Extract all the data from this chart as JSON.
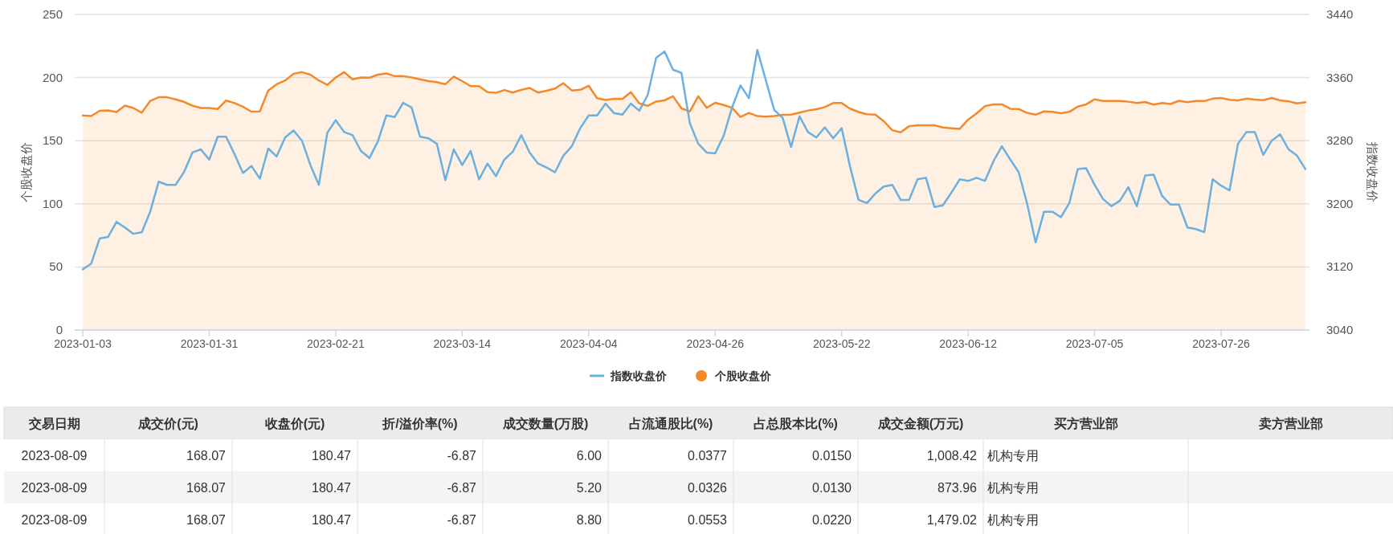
{
  "chart_data": [
    {
      "type": "line",
      "ylabel": "个股收盘价",
      "y2label": "指数收盘价",
      "ylim": [
        0,
        250
      ],
      "yticks": [
        0,
        50,
        100,
        150,
        200,
        250
      ],
      "y2lim": [
        3040,
        3440
      ],
      "y2ticks": [
        3040,
        3120,
        3200,
        3280,
        3360,
        3440
      ],
      "grid": "y",
      "legend": "bottom",
      "categories": [
        "2023-01-03",
        null,
        null,
        null,
        null,
        null,
        null,
        null,
        null,
        null,
        null,
        null,
        null,
        null,
        null,
        "2023-01-31",
        null,
        null,
        null,
        null,
        null,
        null,
        null,
        null,
        null,
        null,
        null,
        null,
        null,
        null,
        "2023-02-21",
        null,
        null,
        null,
        null,
        null,
        null,
        null,
        null,
        null,
        null,
        null,
        null,
        null,
        null,
        "2023-03-14",
        null,
        null,
        null,
        null,
        null,
        null,
        null,
        null,
        null,
        null,
        null,
        null,
        null,
        null,
        "2023-04-04",
        null,
        null,
        null,
        null,
        null,
        null,
        null,
        null,
        null,
        null,
        null,
        null,
        null,
        null,
        "2023-04-26",
        null,
        null,
        null,
        null,
        null,
        null,
        null,
        null,
        null,
        null,
        null,
        null,
        null,
        null,
        "2023-05-22",
        null,
        null,
        null,
        null,
        null,
        null,
        null,
        null,
        null,
        null,
        null,
        null,
        null,
        null,
        "2023-06-12",
        null,
        null,
        null,
        null,
        null,
        null,
        null,
        null,
        null,
        null,
        null,
        null,
        null,
        null,
        "2023-07-05",
        null,
        null,
        null,
        null,
        null,
        null,
        null,
        null,
        null,
        null,
        null,
        null,
        null,
        null,
        "2023-07-26",
        null,
        null,
        null,
        null,
        null,
        null,
        null,
        null,
        null,
        null
      ],
      "series": [
        {
          "name": "指数收盘价",
          "type": "line",
          "axis": "y2",
          "color": "#6ab0e2",
          "values": [
            3117,
            3124,
            3156,
            3158,
            3177,
            3170,
            3162,
            3164,
            3190,
            3228,
            3224,
            3224,
            3240,
            3265,
            3269,
            3256,
            3285,
            3285,
            3263,
            3239,
            3248,
            3232,
            3270,
            3260,
            3284,
            3293,
            3280,
            3249,
            3224,
            3290,
            3306,
            3291,
            3287,
            3267,
            3258,
            3279,
            3312,
            3310,
            3328,
            3322,
            3285,
            3283,
            3276,
            3230,
            3269,
            3249,
            3267,
            3231,
            3251,
            3235,
            3256,
            3266,
            3287,
            3265,
            3251,
            3246,
            3240,
            3261,
            3273,
            3296,
            3312,
            3312,
            3327,
            3315,
            3313,
            3327,
            3318,
            3338,
            3385,
            3393,
            3370,
            3366,
            3302,
            3276,
            3265,
            3264,
            3286,
            3322,
            3350,
            3334,
            3395,
            3357,
            3319,
            3309,
            3272,
            3311,
            3291,
            3284,
            3297,
            3283,
            3296,
            3247,
            3205,
            3201,
            3213,
            3222,
            3224,
            3205,
            3205,
            3231,
            3233,
            3196,
            3198,
            3214,
            3231,
            3229,
            3233,
            3229,
            3254,
            3273,
            3256,
            3240,
            3200,
            3151,
            3190,
            3190,
            3183,
            3201,
            3244,
            3245,
            3224,
            3206,
            3197,
            3204,
            3221,
            3197,
            3236,
            3237,
            3210,
            3199,
            3199,
            3170,
            3168,
            3164,
            3231,
            3223,
            3217,
            3276,
            3291,
            3291,
            3262,
            3280,
            3288,
            3269,
            3261,
            3244
          ]
        },
        {
          "name": "个股收盘价",
          "type": "area",
          "color": "#f5892a",
          "values": [
            170,
            169.5,
            173.7,
            174,
            172.7,
            177.8,
            175.9,
            172.2,
            181.5,
            184.4,
            184.4,
            182.7,
            180.8,
            177.8,
            175.9,
            175.9,
            175.1,
            181.8,
            179.8,
            176.9,
            173,
            173.2,
            189.8,
            194.7,
            197.7,
            203,
            204.3,
            202.3,
            197.7,
            194.2,
            200.1,
            204.3,
            198.6,
            200.1,
            199.9,
            202.3,
            203.3,
            201.1,
            201.1,
            200.1,
            198.6,
            197.2,
            196.4,
            194.7,
            200.8,
            197.2,
            193.2,
            193.2,
            188.4,
            187.9,
            190.1,
            188.1,
            190.3,
            191.8,
            188.1,
            189.6,
            191.3,
            195.5,
            189.8,
            190.3,
            193.5,
            183.7,
            182.2,
            183.2,
            183,
            188.4,
            179.6,
            177.6,
            181,
            182,
            185.2,
            175.6,
            173.2,
            185.2,
            176.1,
            180,
            178.3,
            176.1,
            168.8,
            172,
            169.5,
            169,
            169.5,
            170.5,
            170.7,
            172.2,
            173.9,
            174.9,
            176.6,
            179.8,
            179.8,
            175.4,
            172.7,
            171,
            170.7,
            165.4,
            158.3,
            156.6,
            161.5,
            162.2,
            162.2,
            162.2,
            160.5,
            159.9,
            159.4,
            166.7,
            171.6,
            177.4,
            178.8,
            178.8,
            175.3,
            175.1,
            172,
            170.6,
            173.2,
            172.8,
            171.8,
            172.8,
            177,
            178.8,
            182.8,
            181.4,
            181.4,
            181.4,
            180.9,
            179.8,
            180.7,
            178.6,
            179.8,
            179.1,
            181.6,
            180.5,
            181.4,
            181.4,
            183.3,
            183.8,
            182.4,
            181.9,
            183.3,
            182.6,
            182.1,
            183.8,
            181.9,
            181.2,
            179.5,
            180.5
          ]
        }
      ]
    },
    {
      "type": "other",
      "categories": [
        "交易日期",
        "成交价(元)",
        "收盘价(元)",
        "折/溢价率(%)",
        "成交数量(万股)",
        "占流通股比(%)",
        "占总股本比(%)",
        "成交金额(万元)",
        "买方营业部",
        "卖方营业部"
      ],
      "cell_labels": [
        [
          "2023-08-09",
          "168.07",
          "180.47",
          "-6.87",
          "6.00",
          "0.0377",
          "0.0150",
          "1,008.42",
          "机构专用",
          null
        ],
        [
          "2023-08-09",
          "168.07",
          "180.47",
          "-6.87",
          "5.20",
          "0.0326",
          "0.0130",
          "873.96",
          "机构专用",
          null
        ],
        [
          "2023-08-09",
          "168.07",
          "180.47",
          "-6.87",
          "8.80",
          "0.0553",
          "0.0220",
          "1,479.02",
          "机构专用",
          null
        ]
      ]
    }
  ]
}
